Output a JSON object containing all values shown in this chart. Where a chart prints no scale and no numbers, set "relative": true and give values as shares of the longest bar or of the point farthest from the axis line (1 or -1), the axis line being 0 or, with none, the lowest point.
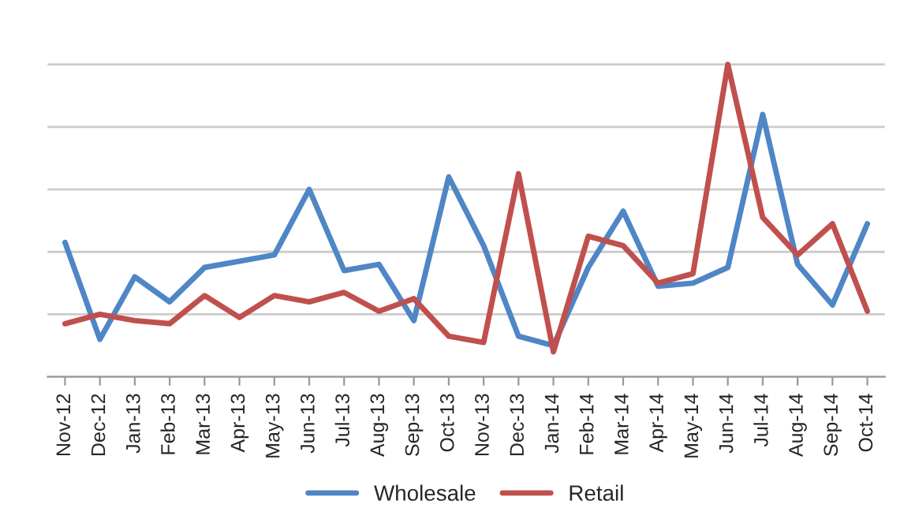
{
  "chart_data": {
    "type": "line",
    "relative": true,
    "grid": "y",
    "legend": "bottom",
    "categories": [
      "Nov-12",
      "Dec-12",
      "Jan-13",
      "Feb-13",
      "Mar-13",
      "Apr-13",
      "May-13",
      "Jun-13",
      "Jul-13",
      "Aug-13",
      "Sep-13",
      "Oct-13",
      "Nov-13",
      "Dec-13",
      "Jan-14",
      "Feb-14",
      "Mar-14",
      "Apr-14",
      "May-14",
      "Jun-14",
      "Jul-14",
      "Aug-14",
      "Sep-14",
      "Oct-14"
    ],
    "series": [
      {
        "name": "Wholesale",
        "color": "#4f86c6",
        "values": [
          0.43,
          0.12,
          0.32,
          0.24,
          0.35,
          0.37,
          0.39,
          0.6,
          0.34,
          0.36,
          0.18,
          0.64,
          0.42,
          0.13,
          0.1,
          0.35,
          0.53,
          0.29,
          0.3,
          0.35,
          0.84,
          0.36,
          0.23,
          0.49
        ]
      },
      {
        "name": "Retail",
        "color": "#c0504d",
        "values": [
          0.17,
          0.2,
          0.18,
          0.17,
          0.26,
          0.19,
          0.26,
          0.24,
          0.27,
          0.21,
          0.25,
          0.13,
          0.11,
          0.65,
          0.08,
          0.45,
          0.42,
          0.3,
          0.33,
          1,
          0.51,
          0.39,
          0.49,
          0.21
        ]
      }
    ]
  }
}
